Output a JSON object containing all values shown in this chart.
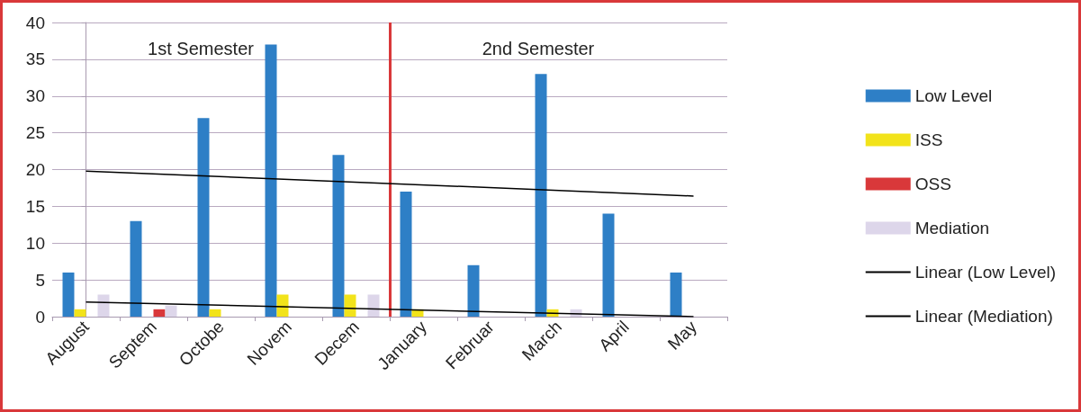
{
  "chart_data": {
    "type": "bar",
    "categories": [
      "August",
      "Septem",
      "Octobe",
      "Novem",
      "Decem",
      "January",
      "Februar",
      "March",
      "April",
      "May"
    ],
    "series": [
      {
        "name": "Low Level",
        "color": "#2e7fc6",
        "values": [
          6,
          13,
          27,
          37,
          22,
          17,
          7,
          33,
          14,
          6
        ]
      },
      {
        "name": "ISS",
        "color": "#f2e31a",
        "values": [
          1,
          0,
          1,
          3,
          3,
          1,
          0,
          1,
          0,
          0
        ]
      },
      {
        "name": "OSS",
        "color": "#d9383a",
        "values": [
          0,
          1,
          0,
          0,
          0,
          0,
          0,
          0,
          0,
          0
        ]
      },
      {
        "name": "Mediation",
        "color": "#ddd6ea",
        "values": [
          3,
          1.5,
          0,
          0,
          3,
          0,
          0,
          1,
          0,
          0
        ]
      },
      {
        "name": "Linear (Low Level)",
        "type": "line",
        "color": "#000000",
        "marker": "none",
        "values": [
          19.8,
          null,
          null,
          null,
          null,
          null,
          null,
          null,
          null,
          16.4
        ]
      },
      {
        "name": "Linear (Mediation)",
        "type": "line",
        "color": "#000000",
        "marker": "none",
        "values": [
          2,
          null,
          null,
          null,
          null,
          null,
          null,
          null,
          null,
          0
        ]
      }
    ],
    "ylim": [
      0,
      40
    ],
    "yticks": [
      0,
      5,
      10,
      15,
      20,
      25,
      30,
      35,
      40
    ],
    "grid": "y",
    "legend": "right",
    "ref_lines": [
      {
        "axis": "x",
        "value": "Decem",
        "color": "#d9383a"
      }
    ],
    "annotations": [
      "1st Semester",
      "2nd Semester"
    ]
  }
}
